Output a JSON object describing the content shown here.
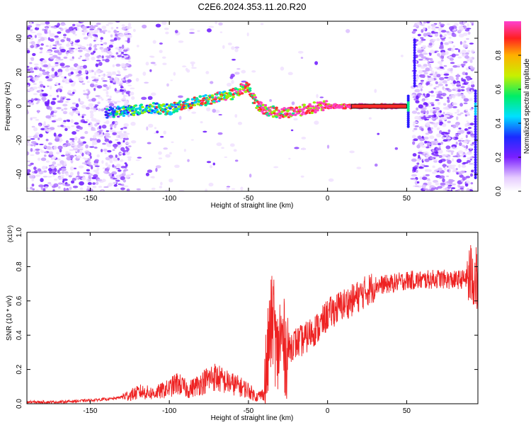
{
  "title": "C2E6.2024.353.11.20.R20",
  "chart_data": [
    {
      "type": "heatmap",
      "xlabel": "Height of straight line (km)",
      "ylabel": "Frequency (Hz)",
      "xlim": [
        -190,
        95
      ],
      "ylim": [
        -50,
        50
      ],
      "xticks": [
        -150,
        -100,
        -50,
        0,
        50
      ],
      "yticks": [
        -40,
        -20,
        0,
        20,
        40
      ],
      "colorbar": {
        "label": "Normalized spectral amplitude",
        "range": [
          0,
          1
        ],
        "ticks": [
          "0.0",
          "0.2",
          "0.4",
          "0.6",
          "0.8"
        ],
        "tick_values": [
          0.0,
          0.2,
          0.4,
          0.6,
          0.8
        ]
      },
      "ridge": {
        "x": [
          -140,
          -130,
          -120,
          -110,
          -100,
          -90,
          -80,
          -70,
          -60,
          -55,
          -50,
          -47,
          -45,
          -40,
          -35,
          -30,
          -20,
          -10,
          -5,
          0,
          10,
          20,
          30,
          40,
          50
        ],
        "y": [
          -4,
          -3,
          -2,
          -1,
          -2,
          1,
          3,
          5,
          7,
          10,
          12,
          5,
          2,
          -2,
          -3,
          -4,
          -3,
          -1,
          0,
          0,
          0,
          0,
          0,
          0,
          0
        ]
      }
    },
    {
      "type": "line",
      "xlabel": "Height of straight line (km)",
      "ylabel": "SNR (10 * v/v)",
      "multiplier": "(x10⁴)",
      "xlim": [
        -190,
        95
      ],
      "ylim": [
        0,
        1
      ],
      "xticks": [
        -150,
        -100,
        -50,
        0,
        50
      ],
      "yticks": [
        "0.0",
        "0.2",
        "0.4",
        "0.6",
        "0.8",
        "1.0"
      ],
      "ytick_values": [
        0.0,
        0.2,
        0.4,
        0.6,
        0.8,
        1.0
      ],
      "series": [
        {
          "color": "#ee2222",
          "x": [
            -190,
            -170,
            -150,
            -135,
            -125,
            -118,
            -110,
            -100,
            -95,
            -88,
            -80,
            -72,
            -65,
            -58,
            -50,
            -45,
            -40,
            -36,
            -34,
            -32,
            -30,
            -26,
            -22,
            -18,
            -14,
            -10,
            -5,
            0,
            5,
            10,
            15,
            20,
            25,
            30,
            40,
            50,
            60,
            70,
            80,
            88,
            92,
            95
          ],
          "y": [
            0.01,
            0.01,
            0.02,
            0.03,
            0.05,
            0.07,
            0.06,
            0.09,
            0.12,
            0.08,
            0.12,
            0.16,
            0.13,
            0.11,
            0.08,
            0.04,
            0.06,
            0.45,
            0.5,
            0.25,
            0.4,
            0.3,
            0.35,
            0.36,
            0.38,
            0.42,
            0.45,
            0.52,
            0.55,
            0.58,
            0.6,
            0.63,
            0.66,
            0.69,
            0.7,
            0.72,
            0.72,
            0.73,
            0.72,
            0.73,
            0.75,
            0.7
          ]
        }
      ]
    }
  ]
}
